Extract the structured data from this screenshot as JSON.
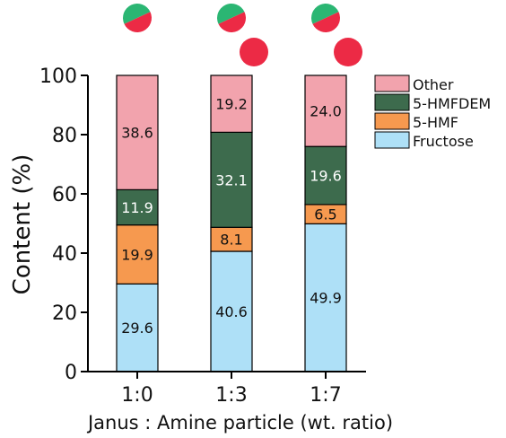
{
  "chart_data": {
    "type": "bar",
    "stacked": true,
    "categories": [
      "1:0",
      "1:3",
      "1:7"
    ],
    "series": [
      {
        "name": "Fructose",
        "values": [
          29.6,
          40.6,
          49.9
        ],
        "color": "#aee0f7",
        "label_color": "#111111"
      },
      {
        "name": "5-HMF",
        "values": [
          19.9,
          8.1,
          6.5
        ],
        "color": "#f6994f",
        "label_color": "#111111"
      },
      {
        "name": "5-HMFDEM",
        "values": [
          11.9,
          32.1,
          19.6
        ],
        "color": "#3d6b4d",
        "label_color": "#ffffff"
      },
      {
        "name": "Other",
        "values": [
          38.6,
          19.2,
          24.0
        ],
        "color": "#f2a3ad",
        "label_color": "#111111"
      }
    ],
    "xlabel": "Janus : Amine particle (wt. ratio)",
    "ylabel": "Content (%)",
    "ylim": [
      0,
      100
    ],
    "yticks": [
      0,
      20,
      40,
      60,
      80,
      100
    ],
    "grid": false,
    "legend_position": "right",
    "legend_order": [
      "Other",
      "5-HMFDEM",
      "5-HMF",
      "Fructose"
    ],
    "particle_icons": [
      {
        "category": "1:0",
        "icons": [
          "janus"
        ]
      },
      {
        "category": "1:3",
        "icons": [
          "janus",
          "amine"
        ]
      },
      {
        "category": "1:7",
        "icons": [
          "janus",
          "amine"
        ]
      }
    ],
    "icon_colors": {
      "green": "#2bb673",
      "red": "#ec2a45"
    }
  }
}
